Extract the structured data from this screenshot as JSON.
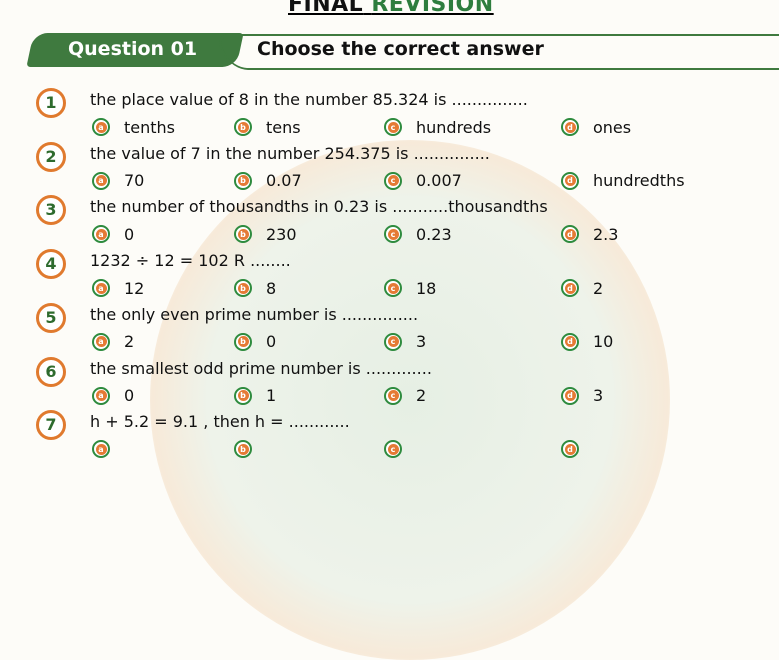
{
  "header": {
    "title_part1": "FINAL",
    "title_part2": "REVISION"
  },
  "section": {
    "label": "Question 01",
    "instruction": "Choose the correct answer"
  },
  "colors": {
    "green": "#3f7a3f",
    "orange": "#e07a2e"
  },
  "option_letters": [
    "a",
    "b",
    "c",
    "d"
  ],
  "questions": [
    {
      "number": "1",
      "text": "the place value of 8 in the number 85.324 is ...............",
      "options": [
        "tenths",
        "tens",
        "hundreds",
        "ones"
      ]
    },
    {
      "number": "2",
      "text": "the value of 7 in the number 254.375 is ...............",
      "options": [
        "70",
        "0.07",
        "0.007",
        "hundredths"
      ]
    },
    {
      "number": "3",
      "text": "the number of thousandths in 0.23 is ...........thousandths",
      "options": [
        "0",
        "230",
        "0.23",
        "2.3"
      ]
    },
    {
      "number": "4",
      "text": "1232 ÷ 12 = 102 R ........",
      "options": [
        "12",
        "8",
        "18",
        "2"
      ]
    },
    {
      "number": "5",
      "text": "the only even prime number is ...............",
      "options": [
        "2",
        "0",
        "3",
        "10"
      ]
    },
    {
      "number": "6",
      "text": "the smallest odd prime number is .............",
      "options": [
        "0",
        "1",
        "2",
        "3"
      ]
    },
    {
      "number": "7",
      "text": "h + 5.2 = 9.1 , then h = ............",
      "options": []
    }
  ]
}
